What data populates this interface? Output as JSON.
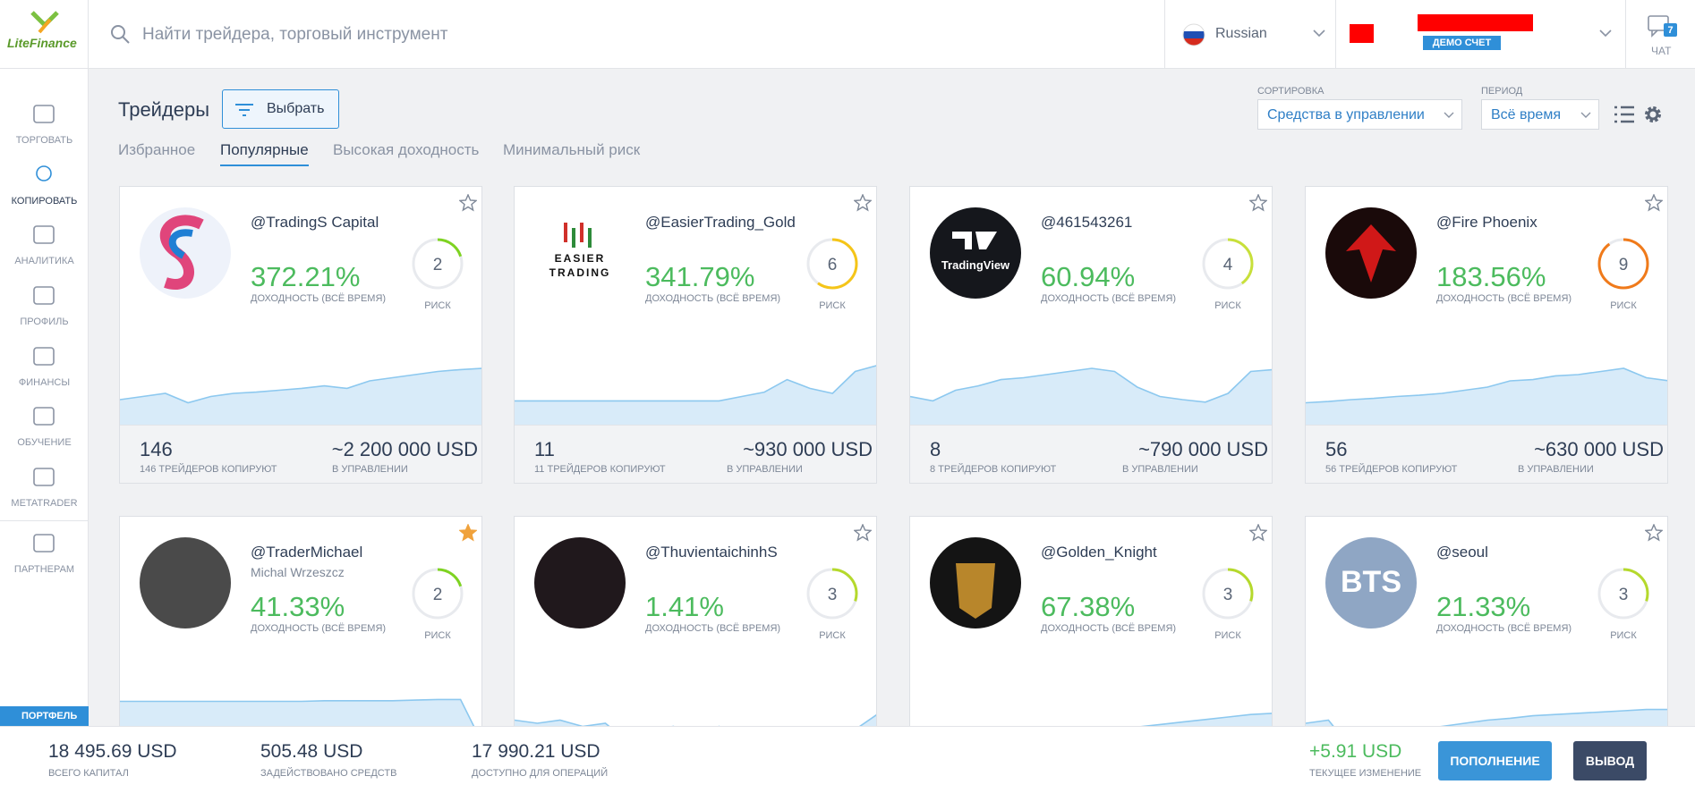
{
  "header": {
    "logo": "LiteFinance",
    "search_placeholder": "Найти трейдера, торговый инструмент",
    "language": "Russian",
    "account_badge": "ДЕМО СЧЕТ",
    "chat_label": "ЧАТ",
    "chat_count": "7"
  },
  "sidebar": {
    "items": [
      "ТОРГОВАТЬ",
      "КОПИРОВАТЬ",
      "АНАЛИТИКА",
      "ПРОФИЛЬ",
      "ФИНАНСЫ",
      "ОБУЧЕНИЕ",
      "METATRADER",
      "ПАРТНЕРАМ"
    ],
    "active": 1,
    "portfolio": "ПОРТФЕЛЬ"
  },
  "toolbar": {
    "title": "Трейдеры",
    "filter_button": "Выбрать",
    "sort_label": "СОРТИРОВКА",
    "sort_value": "Средства в управлении",
    "period_label": "ПЕРИОД",
    "period_value": "Всё время",
    "tabs": [
      "Избранное",
      "Популярные",
      "Высокая доходность",
      "Минимальный риск"
    ],
    "active_tab": 1
  },
  "cards": [
    {
      "name": "@TradingS Capital",
      "return": "372.21%",
      "return_label": "ДОХОДНОСТЬ (ВСЁ ВРЕМЯ)",
      "risk": 2,
      "risk_label": "РИСК",
      "risk_color": "#7ed321",
      "copiers": "146",
      "copiers_label": "146 ТРЕЙДЕРОВ КОПИРУЮТ",
      "aum": "~2 200 000 USD",
      "aum_label": "В УПРАВЛЕНИИ",
      "starred": false
    },
    {
      "name": "@EasierTrading_Gold",
      "avatar_text": [
        "EASIER",
        "TRADING"
      ],
      "return": "341.79%",
      "return_label": "ДОХОДНОСТЬ (ВСЁ ВРЕМЯ)",
      "risk": 6,
      "risk_label": "РИСК",
      "risk_color": "#f5c518",
      "copiers": "11",
      "copiers_label": "11 ТРЕЙДЕРОВ КОПИРУЮТ",
      "aum": "~930 000 USD",
      "aum_label": "В УПРАВЛЕНИИ",
      "starred": false
    },
    {
      "name": "@461543261",
      "avatar_text": [
        "TradingView"
      ],
      "return": "60.94%",
      "return_label": "ДОХОДНОСТЬ (ВСЁ ВРЕМЯ)",
      "risk": 4,
      "risk_label": "РИСК",
      "risk_color": "#c8e03a",
      "copiers": "8",
      "copiers_label": "8 ТРЕЙДЕРОВ КОПИРУЮТ",
      "aum": "~790 000 USD",
      "aum_label": "В УПРАВЛЕНИИ",
      "starred": false
    },
    {
      "name": "@Fire Phoenix",
      "return": "183.56%",
      "return_label": "ДОХОДНОСТЬ (ВСЁ ВРЕМЯ)",
      "risk": 9,
      "risk_label": "РИСК",
      "risk_color": "#f07a1a",
      "copiers": "56",
      "copiers_label": "56 ТРЕЙДЕРОВ КОПИРУЮТ",
      "aum": "~630 000 USD",
      "aum_label": "В УПРАВЛЕНИИ",
      "starred": false
    },
    {
      "name": "@TraderMichael",
      "subname": "Michal Wrzeszcz",
      "return": "41.33%",
      "return_label": "ДОХОДНОСТЬ (ВСЁ ВРЕМЯ)",
      "risk": 2,
      "risk_label": "РИСК",
      "risk_color": "#7ed321",
      "starred": true
    },
    {
      "name": "@ThuvientaichinhS",
      "return": "1.41%",
      "return_label": "ДОХОДНОСТЬ (ВСЁ ВРЕМЯ)",
      "risk": 3,
      "risk_label": "РИСК",
      "risk_color": "#b5d92c",
      "starred": false
    },
    {
      "name": "@Golden_Knight",
      "return": "67.38%",
      "return_label": "ДОХОДНОСТЬ (ВСЁ ВРЕМЯ)",
      "risk": 3,
      "risk_label": "РИСК",
      "risk_color": "#b5d92c",
      "starred": false
    },
    {
      "name": "@seoul",
      "avatar_text": [
        "BTS"
      ],
      "return": "21.33%",
      "return_label": "ДОХОДНОСТЬ (ВСЁ ВРЕМЯ)",
      "risk": 3,
      "risk_label": "РИСК",
      "risk_color": "#b5d92c",
      "starred": false
    }
  ],
  "footer": {
    "stats": [
      {
        "value": "18 495.69 USD",
        "label": "ВСЕГО КАПИТАЛ"
      },
      {
        "value": "505.48 USD",
        "label": "ЗАДЕЙСТВОВАНО СРЕДСТВ"
      },
      {
        "value": "17 990.21 USD",
        "label": "ДОСТУПНО ДЛЯ ОПЕРАЦИЙ"
      }
    ],
    "change": "+5.91 USD",
    "change_label": "ТЕКУЩЕЕ ИЗМЕНЕНИЕ",
    "deposit": "ПОПОЛНЕНИЕ",
    "withdraw": "ВЫВОД"
  }
}
